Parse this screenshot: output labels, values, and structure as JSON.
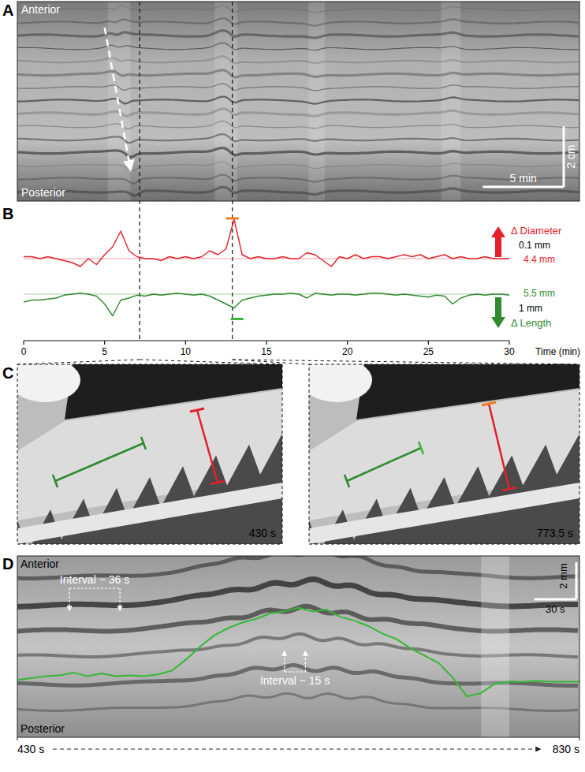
{
  "chart_data": [
    {
      "type": "kymograph",
      "panel_label": "A",
      "xlim": [
        -0.39,
        34.34
      ],
      "ylim": [
        0,
        6.6
      ],
      "tick_labels": false,
      "top_label": "Anterior",
      "bottom_label": "Posterior",
      "y_scale_bar": {
        "value": 2,
        "label": "2 cm"
      },
      "x_scale_bar": {
        "value": 5,
        "label": "5 min"
      }
    },
    {
      "type": "line",
      "panel_label": "B",
      "x_label": "Time (min)",
      "xlim": [
        0,
        30
      ],
      "xticks": [
        0,
        5,
        10,
        15,
        20,
        25,
        30
      ],
      "ylim": [
        4.0,
        4.6
      ],
      "y2lim": [
        3.3,
        9.3
      ],
      "tick_labels": "x",
      "x": [
        0,
        0.5,
        1,
        1.5,
        2,
        2.5,
        3,
        3.5,
        4,
        4.5,
        5,
        5.5,
        6,
        6.5,
        7,
        7.5,
        8,
        8.5,
        9,
        9.5,
        10,
        10.5,
        11,
        11.5,
        12,
        12.5,
        13,
        13.5,
        14,
        14.5,
        15,
        15.5,
        16,
        16.5,
        17,
        17.5,
        18,
        18.5,
        19,
        19.5,
        20,
        20.5,
        21,
        21.5,
        22,
        22.5,
        23,
        23.5,
        24,
        24.5,
        25,
        25.5,
        26,
        26.5,
        27,
        27.5,
        28,
        28.5,
        29,
        29.5,
        30
      ],
      "series": [
        {
          "name": "Δ Diameter",
          "color": "#e3202a",
          "reference": {
            "value": 4.4,
            "label": "4.4 mm"
          },
          "scale_bar": {
            "value": 0.1,
            "label": "0.1 mm"
          },
          "values": [
            4.41,
            4.41,
            4.4,
            4.41,
            4.4,
            4.39,
            4.38,
            4.36,
            4.4,
            4.37,
            4.42,
            4.46,
            4.54,
            4.44,
            4.41,
            4.4,
            4.4,
            4.39,
            4.41,
            4.4,
            4.41,
            4.4,
            4.41,
            4.44,
            4.42,
            4.45,
            4.6,
            4.42,
            4.4,
            4.41,
            4.4,
            4.4,
            4.41,
            4.4,
            4.4,
            4.43,
            4.42,
            4.39,
            4.36,
            4.41,
            4.4,
            4.42,
            4.4,
            4.41,
            4.41,
            4.4,
            4.41,
            4.42,
            4.41,
            4.42,
            4.4,
            4.41,
            4.42,
            4.4,
            4.41,
            4.4,
            4.4,
            4.41,
            4.4,
            4.4,
            4.4
          ]
        },
        {
          "name": "Δ Length",
          "color": "#2e8b2e",
          "axis": "y2",
          "reference": {
            "value": 5.5,
            "label": "5.5 mm"
          },
          "scale_bar": {
            "value": 1,
            "label": "1 mm"
          },
          "values": [
            5.1,
            5.2,
            5.2,
            5.25,
            5.3,
            5.45,
            5.5,
            5.55,
            5.5,
            5.4,
            5.0,
            4.4,
            5.2,
            5.3,
            5.45,
            5.4,
            5.5,
            5.45,
            5.5,
            5.55,
            5.5,
            5.45,
            5.5,
            5.4,
            5.2,
            5.0,
            4.8,
            5.2,
            5.3,
            5.4,
            5.45,
            5.5,
            5.5,
            5.55,
            5.5,
            5.3,
            5.55,
            5.5,
            5.45,
            5.5,
            5.5,
            5.45,
            5.5,
            5.55,
            5.55,
            5.5,
            5.45,
            5.5,
            5.45,
            5.4,
            5.35,
            5.45,
            5.4,
            5.0,
            5.3,
            5.45,
            5.5,
            5.45,
            5.5,
            5.5,
            5.45
          ]
        }
      ],
      "markers": [
        {
          "value": 7.1667,
          "label": "430 s"
        },
        {
          "value": 12.8917,
          "label": "773.5 s"
        }
      ]
    },
    {
      "type": "line",
      "panel_label": "D",
      "xlim": [
        430,
        830
      ],
      "ylim": [
        0,
        9.8
      ],
      "tick_labels": "x",
      "xticks": [
        {
          "value": 430,
          "label": "430 s"
        },
        {
          "value": 830,
          "label": "830 s"
        }
      ],
      "top_label": "Anterior",
      "bottom_label": "Posterior",
      "y_scale_bar": {
        "value": 2,
        "label": "2 mm"
      },
      "x_scale_bar": {
        "value": 30,
        "label": "30 s"
      },
      "intervals": [
        {
          "x": 467,
          "value": 36,
          "label": "Interval ~ 36 s"
        },
        {
          "x": 620,
          "value": 15,
          "label": "Interval ~ 15 s"
        }
      ],
      "x": [
        430,
        440,
        450,
        460,
        470,
        480,
        490,
        500,
        510,
        520,
        530,
        540,
        550,
        560,
        570,
        580,
        590,
        600,
        610,
        620,
        630,
        640,
        650,
        660,
        670,
        680,
        690,
        700,
        710,
        720,
        730,
        740,
        750,
        760,
        770,
        780,
        790,
        800,
        810,
        820,
        830
      ],
      "series": [
        {
          "color": "#35b835",
          "values": [
            3.1,
            3.2,
            3.3,
            3.35,
            3.5,
            3.3,
            3.45,
            3.3,
            3.35,
            3.3,
            3.4,
            3.6,
            4.2,
            4.9,
            5.5,
            5.9,
            6.2,
            6.4,
            6.7,
            6.8,
            7.0,
            6.8,
            6.9,
            6.5,
            6.3,
            6.0,
            5.6,
            5.3,
            4.8,
            4.4,
            4.0,
            3.2,
            2.2,
            2.4,
            2.9,
            3.0,
            3.0,
            3.05,
            3.0,
            3.0,
            3.0
          ]
        }
      ]
    }
  ]
}
